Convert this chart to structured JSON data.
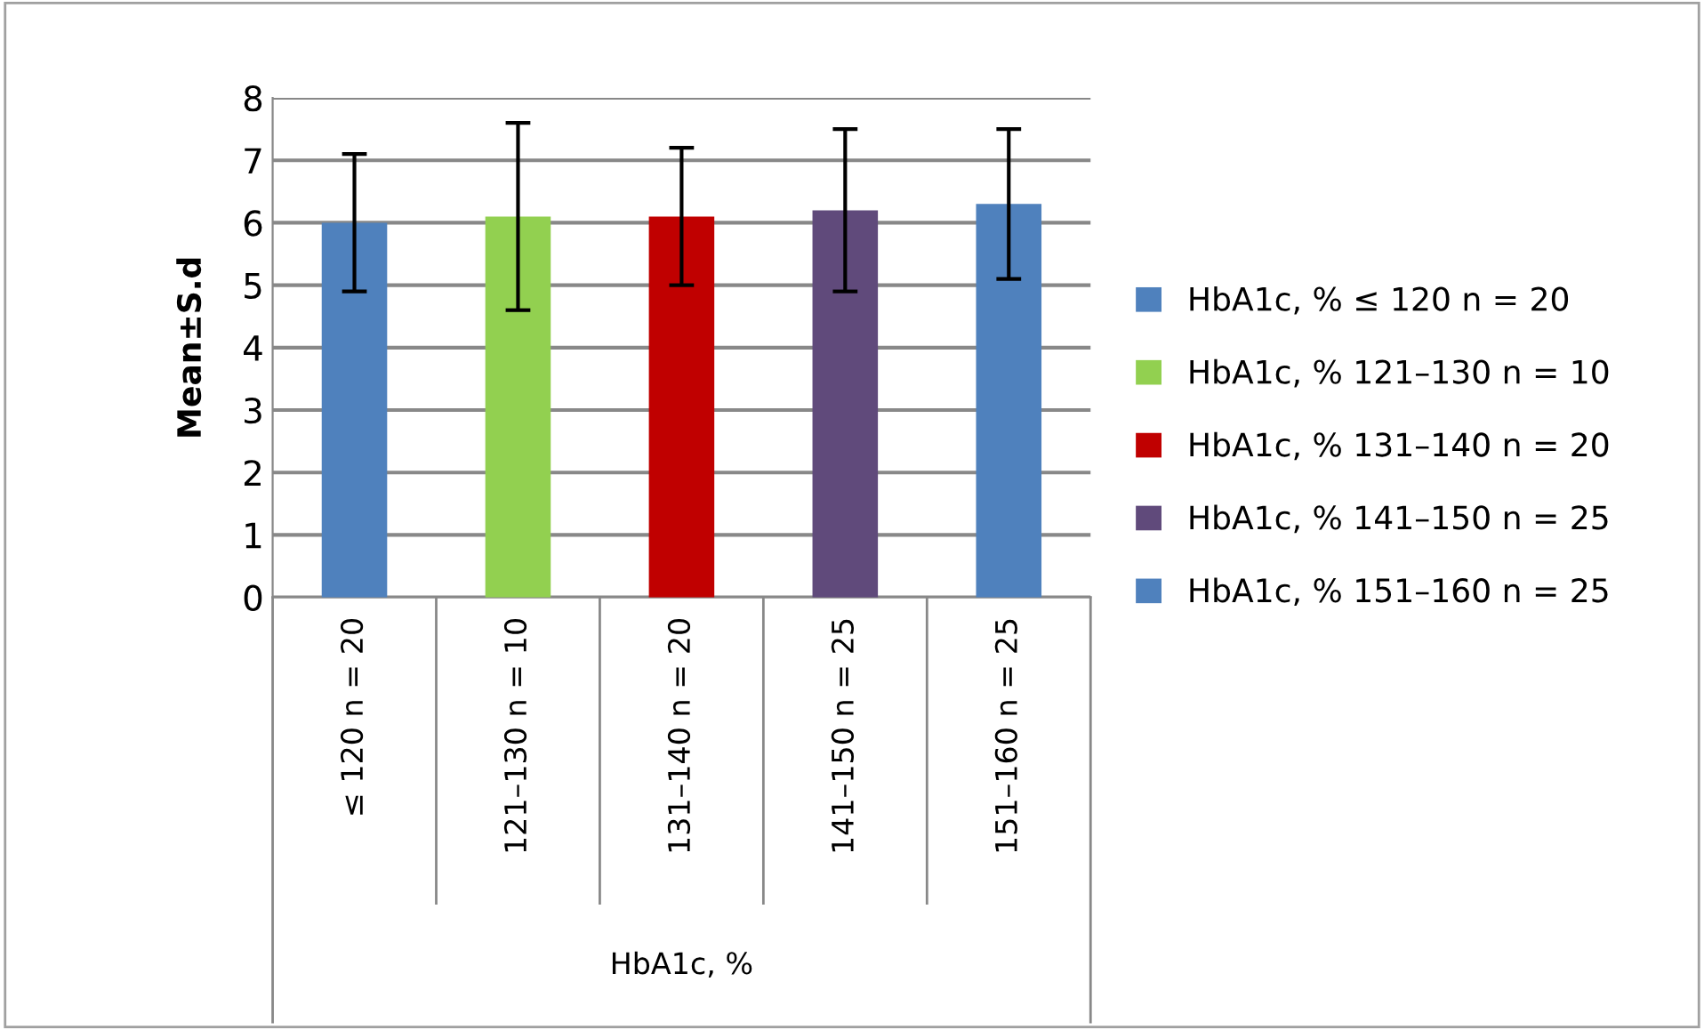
{
  "chart_data": {
    "type": "bar",
    "ylabel": "Mean±S.d",
    "xlabel": "HbA1c, %",
    "categories": [
      "≤ 120 n = 20",
      "121–130 n = 10",
      "131–140 n = 20",
      "141–150 n = 25",
      "151–160 n = 25"
    ],
    "series": [
      {
        "name": "HbA1c, % ≤ 120 n = 20",
        "color": "#4f81bd",
        "values": [
          6.0,
          null,
          null,
          null,
          null
        ],
        "errors": [
          1.1,
          null,
          null,
          null,
          null
        ]
      },
      {
        "name": "HbA1c, % 121–130 n = 10",
        "color": "#92d050",
        "values": [
          null,
          6.1,
          null,
          null,
          null
        ],
        "errors": [
          null,
          1.5,
          null,
          null,
          null
        ]
      },
      {
        "name": "HbA1c, % 131–140 n = 20",
        "color": "#c00000",
        "values": [
          null,
          null,
          6.1,
          null,
          null
        ],
        "errors": [
          null,
          null,
          1.1,
          null,
          null
        ]
      },
      {
        "name": "HbA1c, % 141–150 n = 25",
        "color": "#604a7b",
        "values": [
          null,
          null,
          null,
          6.2,
          null
        ],
        "errors": [
          null,
          null,
          null,
          1.3,
          null
        ]
      },
      {
        "name": "HbA1c, % 151–160 n = 25",
        "color": "#4f81bd",
        "values": [
          null,
          null,
          null,
          null,
          6.3
        ],
        "errors": [
          null,
          null,
          null,
          null,
          1.2
        ]
      }
    ],
    "ylim": [
      0,
      8
    ],
    "yticks": [
      0,
      1,
      2,
      3,
      4,
      5,
      6,
      7,
      8
    ],
    "grid": "y",
    "legend": "right"
  }
}
